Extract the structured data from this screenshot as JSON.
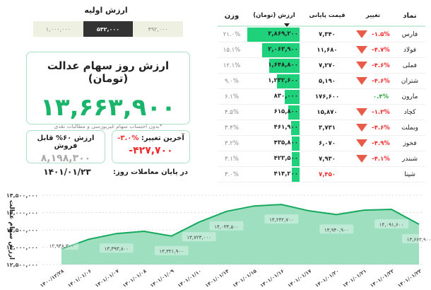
{
  "initial": {
    "title": "ارزش اولیه",
    "options": [
      "۱,۰۰۰,۰۰۰",
      "۵۳۲,۰۰۰",
      "۴۹۲,۰۰۰"
    ],
    "selected": 1
  },
  "main": {
    "title": "ارزش روز سهام عدالت (تومان)",
    "value": "۱۳,۶۶۳,۹۰۰",
    "note": "*بدون احتساب سهام غیربورسی و مطالبات نقدی"
  },
  "sellable": {
    "title": "ارزش ۶۰% قابل فروش",
    "value": "۸,۱۹۸,۳۰۰"
  },
  "last_change": {
    "title": "آخرین تغییر:",
    "percent": "-۳.۰%",
    "value": "-۴۲۷,۷۰۰"
  },
  "date": {
    "label": "در پایان معاملات روز:",
    "value": "۱۴۰۱/۰۱/۲۳"
  },
  "table": {
    "headers": {
      "symbol": "نماد",
      "change": "تغییر",
      "price": "قیمت پایانی",
      "value": "ارزش (تومان)",
      "weight": "وزن"
    },
    "sort_column": "value",
    "rows": [
      {
        "symbol": "فارس",
        "change": "-۱.۵%",
        "dir": "down",
        "price": "۷,۳۴۰",
        "value": "۲,۸۶۹,۲۰۰",
        "weight": "۲۱.۰%",
        "share": 21.0
      },
      {
        "symbol": "فولاد",
        "change": "-۴.۷%",
        "dir": "down",
        "price": "۱۱,۶۸۰",
        "value": "۲,۰۶۳,۹۰۰",
        "weight": "۱۵.۱%",
        "share": 15.1
      },
      {
        "symbol": "فملی",
        "change": "-۴.۶%",
        "dir": "down",
        "price": "۷,۲۷۰",
        "value": "۱,۶۴۸,۸۰۰",
        "weight": "۱۲.۱%",
        "share": 12.1
      },
      {
        "symbol": "شتران",
        "change": "-۴.۶%",
        "dir": "down",
        "price": "۵,۱۹۰",
        "value": "۱,۲۳۲,۶۰۰",
        "weight": "۹.۰%",
        "share": 9.0
      },
      {
        "symbol": "مارون",
        "change": "۰.۴%",
        "dir": "up",
        "price": "۱۷۶,۶۰۰",
        "value": "۸۳۰,۰۰۰",
        "weight": "۶.۱%",
        "share": 6.1
      },
      {
        "symbol": "کچاد",
        "change": "-۱.۳%",
        "dir": "down",
        "price": "۱۵,۸۷۰",
        "value": "۶۱۵,۸۰۰",
        "weight": "۴.۵%",
        "share": 4.5
      },
      {
        "symbol": "وبملت",
        "change": "-۴.۶%",
        "dir": "down",
        "price": "۳,۷۳۱",
        "value": "۴۶۱,۹۰۰",
        "weight": "۳.۴%",
        "share": 3.4
      },
      {
        "symbol": "فخوز",
        "change": "-۴.۹%",
        "dir": "down",
        "price": "۶,۰۷۰",
        "value": "۴۳۵,۸۰۰",
        "weight": "۳.۲%",
        "share": 3.2
      },
      {
        "symbol": "شبندر",
        "change": "-۴.۱%",
        "dir": "down",
        "price": "۷,۹۳۰",
        "value": "۴۲۳,۵۰۰",
        "weight": "۳.۱%",
        "share": 3.1
      },
      {
        "symbol": "شپنا",
        "change": "",
        "dir": "none",
        "price": "۷,۴۵۰",
        "value": "۴۱۴,۲۰۰",
        "weight": "۳.۰%",
        "share": 3.0,
        "price_color": "red"
      }
    ]
  },
  "colors": {
    "accent": "#18b56a",
    "bar": "#1fd17a",
    "negative": "#f02a2a",
    "positive": "#2fa84a",
    "area": "#9ddfbf",
    "line": "#16a85e"
  },
  "chart_data": {
    "type": "area",
    "ylabel": "ارزش سهام عدالت",
    "ylim": [
      12500000,
      14500000
    ],
    "y_ticks": [
      12500000,
      13000000,
      13500000,
      14000000,
      14500000
    ],
    "y_tick_labels": [
      "۱۲,۵۰۰,۰۰۰",
      "۱۳,۰۰۰,۰۰۰",
      "۱۳,۵۰۰,۰۰۰",
      "۱۴,۰۰۰,۰۰۰",
      "۱۴,۵۰۰,۰۰۰"
    ],
    "grid": true,
    "x": [
      "۱۴۰۰/۱۲/۲۸",
      "۱۴۰۱/۰۱/۰۶",
      "۱۴۰۱/۰۱/۰۷",
      "۱۴۰۱/۰۱/۰۸",
      "۱۴۰۱/۰۱/۰۹",
      "۱۴۰۱/۰۱/۱۰",
      "۱۴۰۱/۰۱/۱۴",
      "۱۴۰۱/۰۱/۱۵",
      "۱۴۰۱/۰۱/۱۶",
      "۱۴۰۱/۰۱/۱۷",
      "۱۴۰۱/۰۱/۲۰",
      "۱۴۰۱/۰۱/۲۱",
      "۱۴۰۱/۰۱/۲۲",
      "۱۴۰۱/۰۱/۲۳"
    ],
    "values": [
      12948300,
      13230000,
      13393800,
      13460000,
      13321900,
      13723000,
      14034500,
      14190000,
      14232700,
      14050000,
      13940900,
      14070000,
      14091600,
      13663900
    ],
    "data_labels": [
      "۱۲,۹۴۸,۳۰۰",
      "",
      "۱۳,۳۹۳,۸۰۰",
      "",
      "۱۳,۳۲۱,۹۰۰",
      "۱۳,۷۲۳,۰۰۰",
      "۱۴,۰۳۴,۵۰۰",
      "",
      "۱۴,۲۳۲,۷۰۰",
      "",
      "۱۳,۹۴۰,۹۰۰",
      "",
      "۱۴,۰۹۱,۶۰۰",
      "۱۳,۶۶۳,۹۰۰"
    ]
  }
}
